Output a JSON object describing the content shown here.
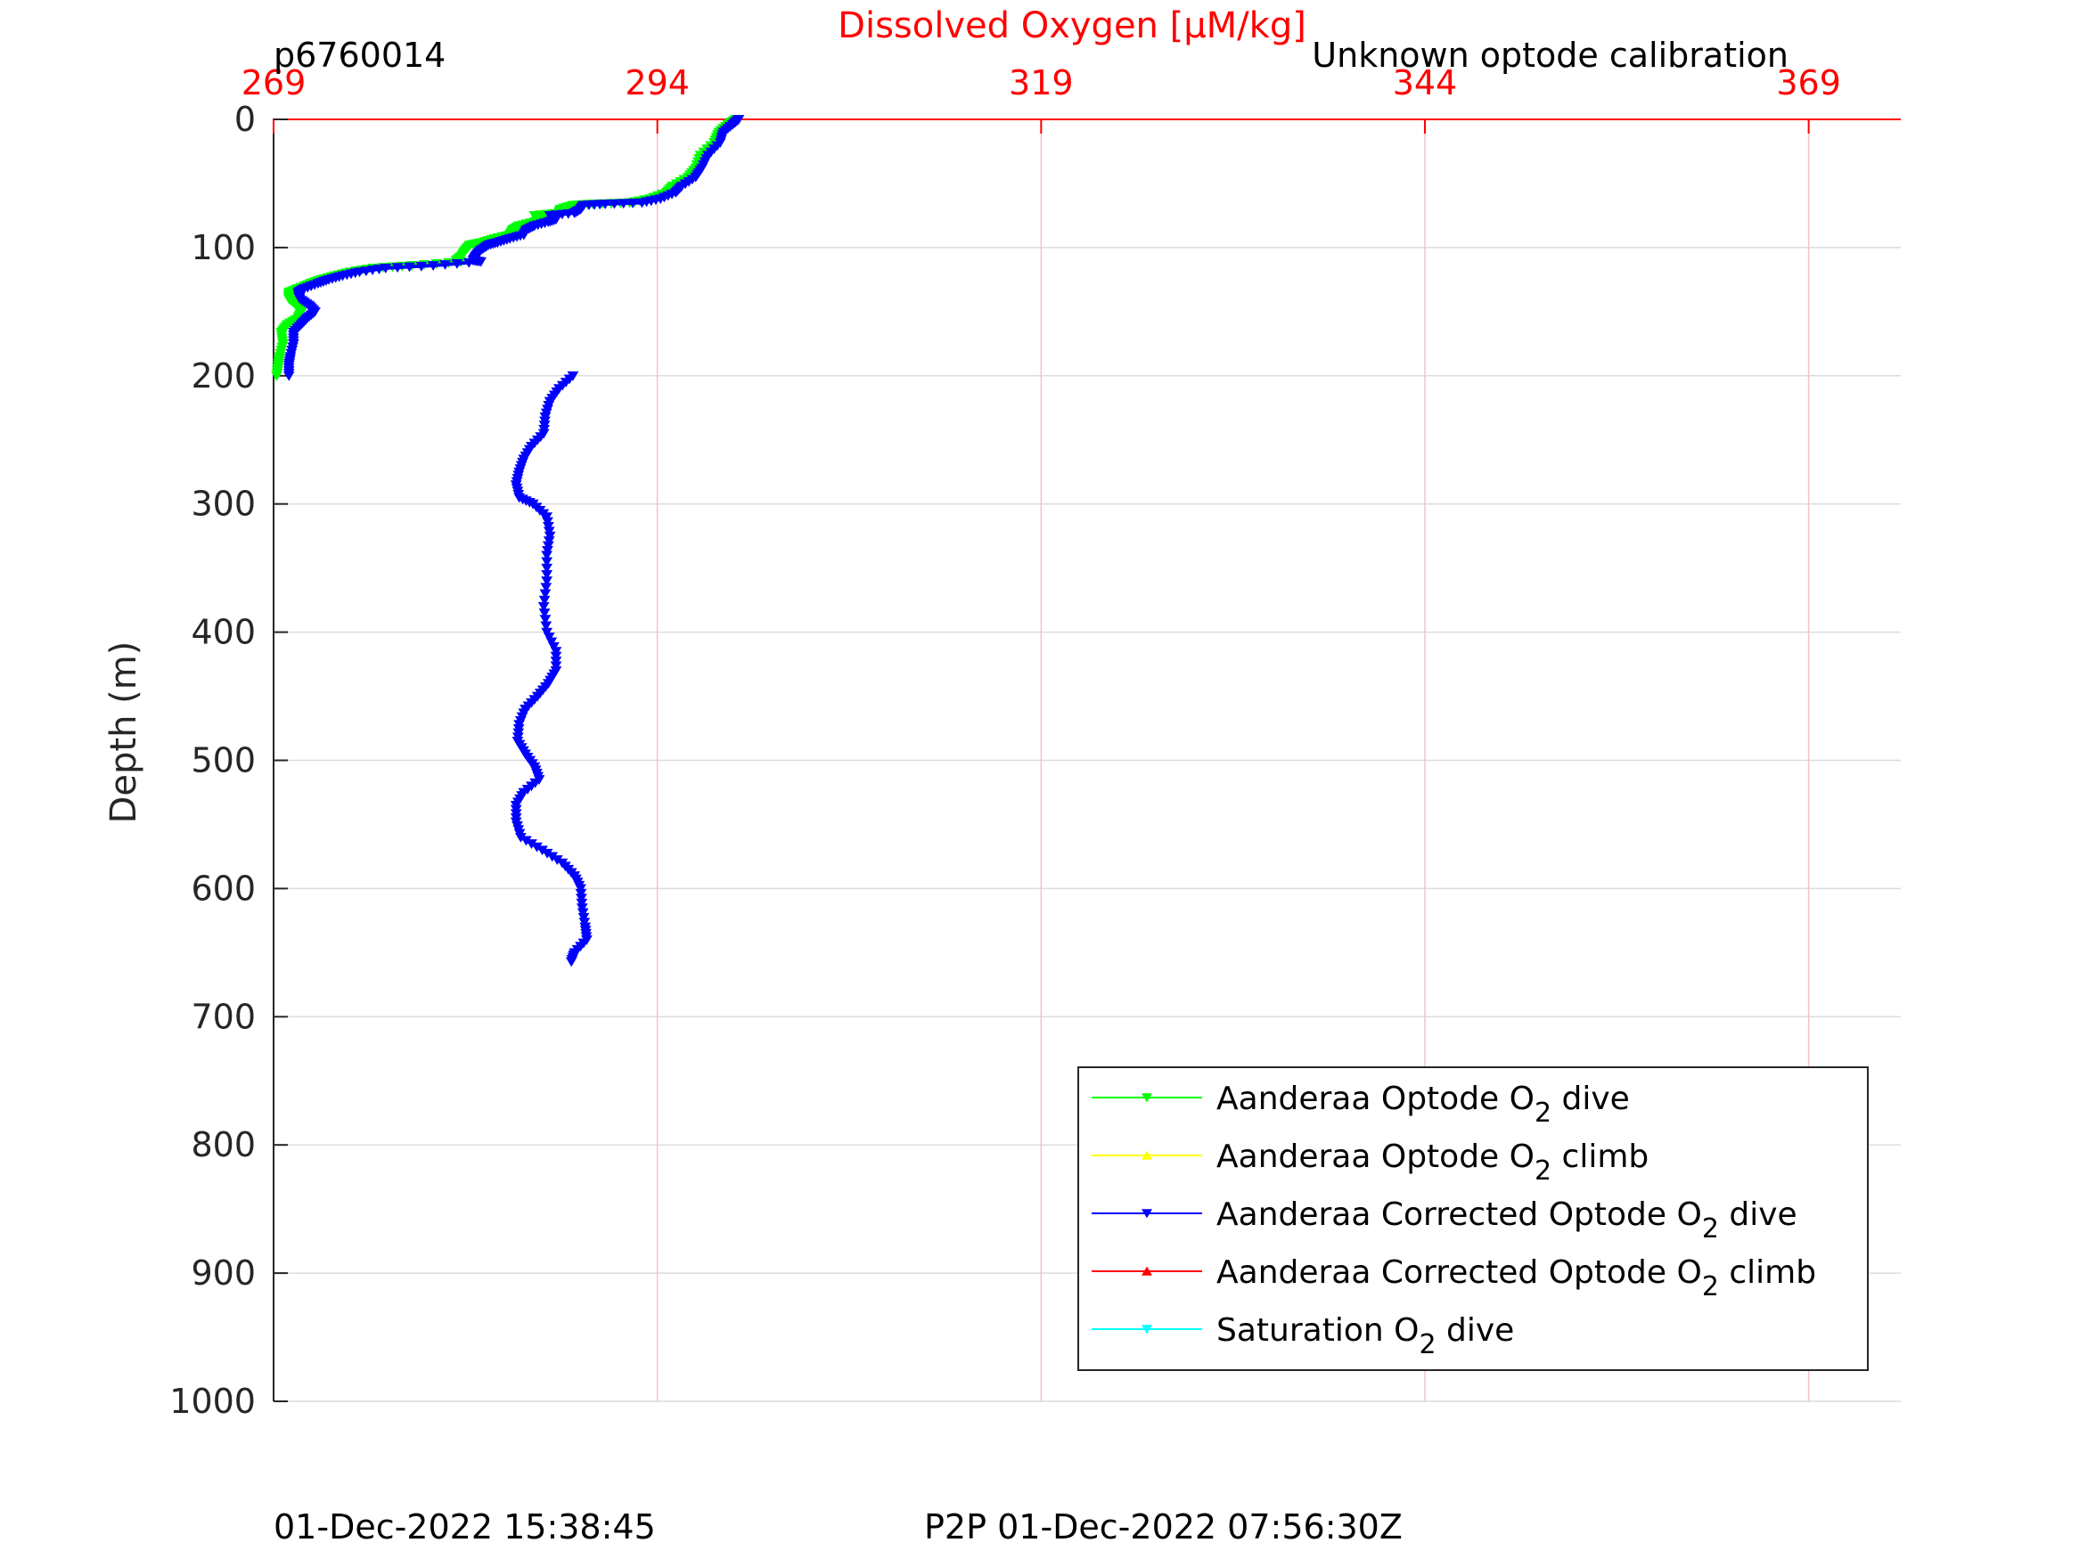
{
  "chart_data": {
    "type": "line",
    "title": "Dissolved Oxygen [μM/kg]",
    "title_color": "#ff0000",
    "profile_label": "p6760014",
    "calibration_note": "Unknown optode calibration",
    "xlabel": "Dissolved Oxygen [μM/kg]",
    "ylabel": "Depth (m)",
    "x_axis_position": "top",
    "x_axis_color": "#ff0000",
    "y_reversed": true,
    "xlim": [
      269,
      375
    ],
    "ylim": [
      0,
      1000
    ],
    "xticks": [
      269,
      294,
      319,
      344,
      369
    ],
    "xtick_labels": [
      "269",
      "294",
      "319",
      "344",
      "369"
    ],
    "yticks": [
      0,
      100,
      200,
      300,
      400,
      500,
      600,
      700,
      800,
      900,
      1000
    ],
    "ytick_labels": [
      "0",
      "100",
      "200",
      "300",
      "400",
      "500",
      "600",
      "700",
      "800",
      "900",
      "1000"
    ],
    "grid": true,
    "legend_position": "bottom-right",
    "series": [
      {
        "name": "Aanderaa Optode O2 dive",
        "color": "#00ff00",
        "marker": "triangle-down",
        "points": [
          [
            299.1,
            0
          ],
          [
            298.6,
            4
          ],
          [
            298.0,
            10
          ],
          [
            297.7,
            18
          ],
          [
            296.8,
            28
          ],
          [
            296.5,
            38
          ],
          [
            296.0,
            45
          ],
          [
            295.0,
            52
          ],
          [
            294.6,
            57
          ],
          [
            293.5,
            62
          ],
          [
            292.2,
            65
          ],
          [
            289.8,
            66
          ],
          [
            288.5,
            67
          ],
          [
            287.7,
            70
          ],
          [
            287.6,
            73
          ],
          [
            286.0,
            75
          ],
          [
            286.5,
            78
          ],
          [
            286.0,
            80
          ],
          [
            285.0,
            83
          ],
          [
            284.6,
            86
          ],
          [
            284.4,
            90
          ],
          [
            283.4,
            93
          ],
          [
            282.6,
            96
          ],
          [
            281.8,
            98
          ],
          [
            281.5,
            102
          ],
          [
            281.3,
            106
          ],
          [
            280.9,
            110
          ],
          [
            281.2,
            111
          ],
          [
            278.0,
            114
          ],
          [
            275.5,
            116
          ],
          [
            274.0,
            119
          ],
          [
            273.0,
            122
          ],
          [
            272.1,
            125
          ],
          [
            271.4,
            128
          ],
          [
            270.6,
            132
          ],
          [
            270.0,
            135
          ],
          [
            270.0,
            140
          ],
          [
            270.5,
            145
          ],
          [
            270.8,
            150
          ],
          [
            270.6,
            155
          ],
          [
            269.9,
            160
          ],
          [
            269.5,
            166
          ],
          [
            269.6,
            175
          ],
          [
            269.4,
            185
          ],
          [
            269.3,
            192
          ],
          [
            269.2,
            200
          ]
        ]
      },
      {
        "name": "Aanderaa Optode O2 climb",
        "color": "#ffff00",
        "marker": "triangle-up",
        "points": []
      },
      {
        "name": "Aanderaa Corrected Optode O2 dive",
        "color": "#0000ff",
        "marker": "triangle-down",
        "points": [
          [
            299.3,
            0
          ],
          [
            298.9,
            4
          ],
          [
            298.3,
            10
          ],
          [
            298.1,
            18
          ],
          [
            297.3,
            28
          ],
          [
            296.9,
            38
          ],
          [
            296.5,
            45
          ],
          [
            295.6,
            52
          ],
          [
            295.2,
            57
          ],
          [
            294.2,
            62
          ],
          [
            293.0,
            65
          ],
          [
            290.6,
            66
          ],
          [
            289.2,
            67
          ],
          [
            289.0,
            70
          ],
          [
            288.6,
            73
          ],
          [
            287.0,
            75
          ],
          [
            287.4,
            78
          ],
          [
            286.9,
            80
          ],
          [
            286.0,
            83
          ],
          [
            285.5,
            86
          ],
          [
            285.3,
            90
          ],
          [
            284.4,
            93
          ],
          [
            283.6,
            96
          ],
          [
            283.0,
            98
          ],
          [
            282.5,
            102
          ],
          [
            282.2,
            106
          ],
          [
            282.0,
            110
          ],
          [
            282.5,
            111
          ],
          [
            279.4,
            114
          ],
          [
            276.3,
            116
          ],
          [
            274.6,
            119
          ],
          [
            273.5,
            122
          ],
          [
            272.6,
            125
          ],
          [
            271.9,
            128
          ],
          [
            271.0,
            132
          ],
          [
            270.6,
            135
          ],
          [
            270.7,
            140
          ],
          [
            271.3,
            145
          ],
          [
            271.7,
            150
          ],
          [
            271.2,
            155
          ],
          [
            270.8,
            160
          ],
          [
            270.3,
            166
          ],
          [
            270.3,
            175
          ],
          [
            270.1,
            185
          ],
          [
            270.0,
            192
          ],
          [
            270.0,
            200
          ]
        ]
      },
      {
        "name": "Aanderaa Corrected Optode O2 climb",
        "color": "#ff0000",
        "marker": "triangle-up",
        "points": []
      },
      {
        "name": "Saturation O2 dive",
        "color": "#00ffff",
        "marker": "triangle-down",
        "points": []
      },
      {
        "name": "Aanderaa Corrected Optode O2 dive (deep)",
        "color": "#0000ff",
        "marker": "triangle-down",
        "legend": false,
        "points": [
          [
            288.5,
            200
          ],
          [
            287.6,
            210
          ],
          [
            287.0,
            220
          ],
          [
            286.7,
            232
          ],
          [
            286.6,
            245
          ],
          [
            285.8,
            255
          ],
          [
            285.3,
            265
          ],
          [
            285.0,
            275
          ],
          [
            284.8,
            285
          ],
          [
            285.0,
            295
          ],
          [
            285.9,
            300
          ],
          [
            286.8,
            310
          ],
          [
            287.0,
            325
          ],
          [
            286.8,
            340
          ],
          [
            286.8,
            360
          ],
          [
            286.6,
            380
          ],
          [
            286.8,
            400
          ],
          [
            287.4,
            415
          ],
          [
            287.4,
            430
          ],
          [
            286.9,
            440
          ],
          [
            286.2,
            450
          ],
          [
            285.4,
            460
          ],
          [
            285.0,
            472
          ],
          [
            284.9,
            485
          ],
          [
            285.4,
            495
          ],
          [
            286.0,
            505
          ],
          [
            286.3,
            515
          ],
          [
            285.3,
            525
          ],
          [
            284.8,
            535
          ],
          [
            284.8,
            548
          ],
          [
            285.1,
            560
          ],
          [
            286.5,
            570
          ],
          [
            287.8,
            580
          ],
          [
            288.6,
            590
          ],
          [
            289.0,
            600
          ],
          [
            289.1,
            615
          ],
          [
            289.3,
            630
          ],
          [
            289.4,
            640
          ],
          [
            288.6,
            650
          ],
          [
            288.4,
            657
          ]
        ]
      }
    ]
  },
  "footer": {
    "left": "01-Dec-2022 15:38:45",
    "right": "P2P 01-Dec-2022 07:56:30Z"
  }
}
